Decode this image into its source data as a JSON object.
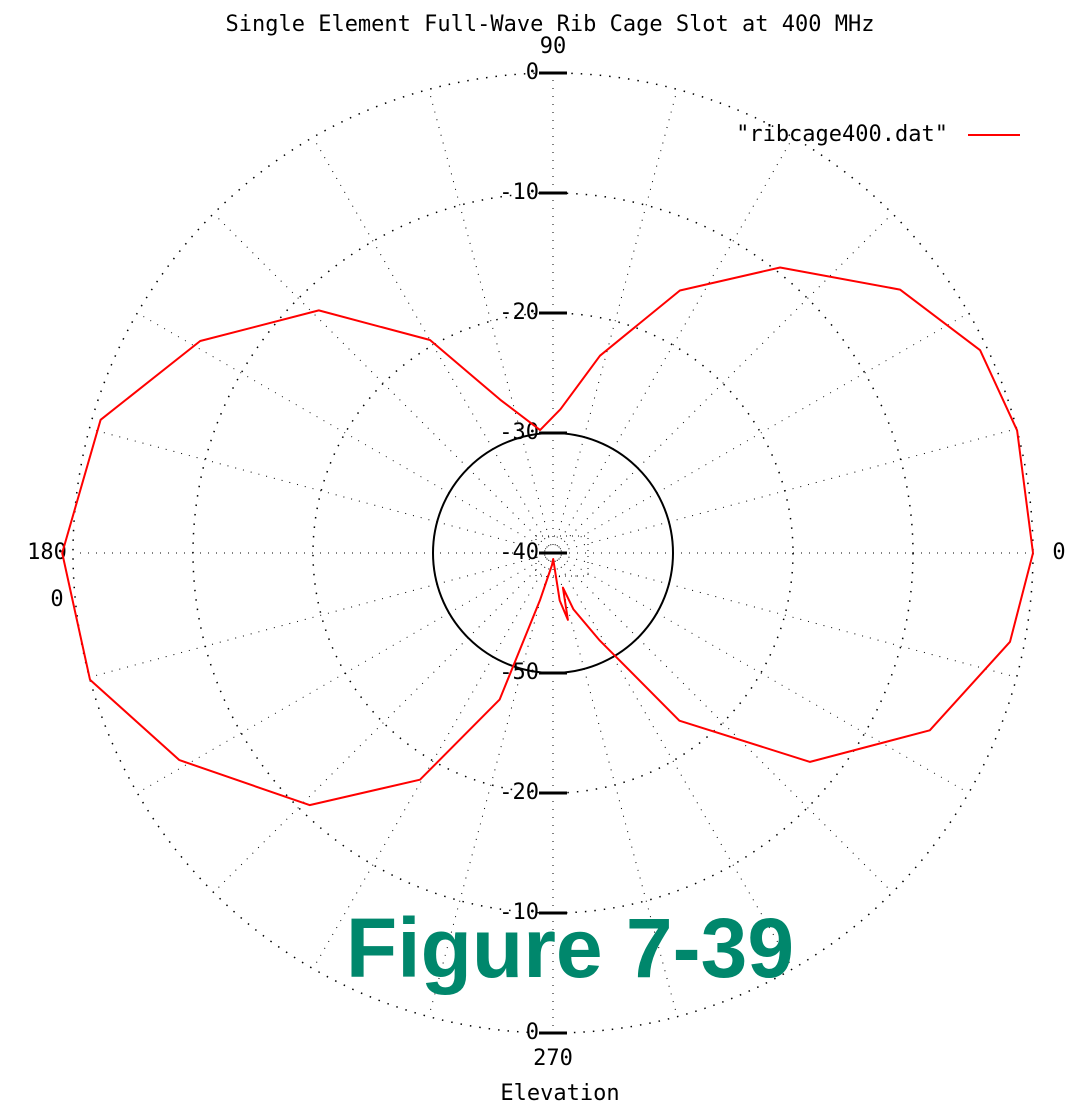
{
  "chart_data": {
    "type": "polar",
    "title": "Single Element Full-Wave Rib Cage Slot at 400 MHz",
    "xlabel": "Elevation",
    "annotation": "Figure 7-39",
    "rlim": [
      -40,
      0
    ],
    "rticks": [
      -40,
      -30,
      -20,
      -10,
      0
    ],
    "lower_rtick_labels": [
      "-50",
      "-20",
      "-10",
      "0"
    ],
    "angle_ticks": [
      0,
      90,
      180,
      270
    ],
    "left_sublabel": "0",
    "theta": [
      0,
      14.8,
      25.4,
      37.2,
      51.5,
      64.2,
      76.6,
      87,
      96,
      109,
      120,
      134,
      149,
      163.6,
      180,
      195.3,
      209,
      226,
      239.6,
      250,
      254.5,
      265,
      272,
      278,
      282.6,
      286,
      290,
      298,
      307,
      320.9,
      334.8,
      349,
      360
    ],
    "series": [
      {
        "name": "\"ribcage400.dat\"",
        "color": "#ff0000",
        "values": [
          0,
          0,
          -0.6,
          -3.7,
          -9.6,
          -15.7,
          -23.1,
          -28,
          -29.7,
          -26.5,
          -19.5,
          -11.9,
          -5.7,
          -0.7,
          0.9,
          0,
          -4.4,
          -10.8,
          -18.1,
          -27,
          -35.9,
          -39,
          -39.5,
          -36,
          -34.3,
          -37,
          -35,
          -31.8,
          -22.5,
          -12.4,
          -5.3,
          -1.2,
          0
        ]
      }
    ],
    "grid": true
  }
}
